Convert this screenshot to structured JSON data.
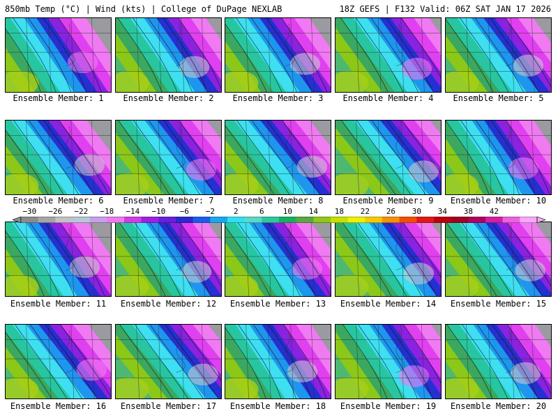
{
  "header": {
    "left": "850mb Temp (°C) | Wind (kts) | College of DuPage NEXLAB",
    "right": "18Z GEFS | F132 Valid: 06Z SAT JAN 17 2026"
  },
  "panels": [
    {
      "label": "Ensemble Member: 1"
    },
    {
      "label": "Ensemble Member: 2"
    },
    {
      "label": "Ensemble Member: 3"
    },
    {
      "label": "Ensemble Member: 4"
    },
    {
      "label": "Ensemble Member: 5"
    },
    {
      "label": "Ensemble Member: 6"
    },
    {
      "label": "Ensemble Member: 7"
    },
    {
      "label": "Ensemble Member: 8"
    },
    {
      "label": "Ensemble Member: 9"
    },
    {
      "label": "Ensemble Member: 10"
    },
    {
      "label": "Ensemble Member: 11"
    },
    {
      "label": "Ensemble Member: 12"
    },
    {
      "label": "Ensemble Member: 13"
    },
    {
      "label": "Ensemble Member: 14"
    },
    {
      "label": "Ensemble Member: 15"
    },
    {
      "label": "Ensemble Member: 16"
    },
    {
      "label": "Ensemble Member: 17"
    },
    {
      "label": "Ensemble Member: 18"
    },
    {
      "label": "Ensemble Member: 19"
    },
    {
      "label": "Ensemble Member: 20"
    }
  ],
  "colorbar": {
    "ticks": [
      "−30",
      "−26",
      "−22",
      "−18",
      "−14",
      "−10",
      "−6",
      "−2",
      "2",
      "6",
      "10",
      "14",
      "18",
      "22",
      "26",
      "30",
      "34",
      "38",
      "42"
    ],
    "colors": [
      "#8c8c8c",
      "#a6a6a6",
      "#c2c2c2",
      "#b8c8d8",
      "#c8a0e8",
      "#ee7af0",
      "#d23ce6",
      "#a020e0",
      "#6a20d8",
      "#2a2ad0",
      "#1a5ee8",
      "#18a8f0",
      "#30e0f0",
      "#5ad8c8",
      "#2ec89a",
      "#18b060",
      "#5aa840",
      "#90c818",
      "#c8e000",
      "#f0f000",
      "#f8c800",
      "#f89000",
      "#f05000",
      "#e01818",
      "#c00010",
      "#a00020",
      "#b00060",
      "#d020a0",
      "#ee60e0",
      "#f8a8f8"
    ]
  }
}
